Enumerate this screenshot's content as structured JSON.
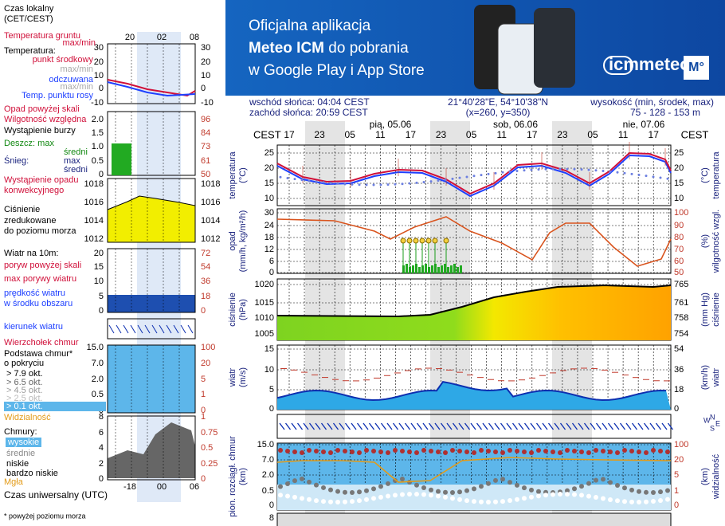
{
  "banner": {
    "line1": "Oficjalna aplikacja",
    "brand": "Meteo ICM",
    "line2_rest": " do pobrania",
    "line3": "w Google Play i App Store",
    "logo": "icmmeteo",
    "badge": "M°"
  },
  "info": {
    "sunrise": "wschód słońca: 04:04 CEST",
    "sunset": "zachód słońca: 20:59 CEST",
    "coords": "21°40'28\"E, 54°10'38\"N",
    "grid_point": "(x=260,  y=350)",
    "elevation_title": "wysokość (min, środek, max)",
    "elevation": "75 - 128 - 153 m"
  },
  "header": {
    "tz": "CEST",
    "days": [
      "pią, 05.06",
      "sob, 06.06",
      "nie, 07.06"
    ],
    "hours": [
      "17",
      "23",
      "05",
      "11",
      "17",
      "23",
      "05",
      "11",
      "17",
      "23",
      "05",
      "11",
      "17"
    ]
  },
  "panels": [
    {
      "left_label": [
        "temperatura",
        "(°C)"
      ],
      "right_label": [
        "(°C)",
        "temperatura"
      ],
      "yticks": [
        "25",
        "20",
        "15",
        "10"
      ],
      "y2ticks": [
        "25",
        "20",
        "15",
        "10"
      ]
    },
    {
      "left_label": [
        "opad",
        "(mm/h, kg/m²/h)"
      ],
      "right_label": [
        "(%)",
        "wilgotność wzgl."
      ],
      "yticks": [
        "30",
        "24",
        "18",
        "12",
        "6",
        "0"
      ],
      "y2ticks": [
        "100",
        "90",
        "80",
        "70",
        "60",
        "50"
      ]
    },
    {
      "left_label": [
        "ciśnienie",
        "(hPa)"
      ],
      "right_label": [
        "(mm Hg)",
        "ciśnienie"
      ],
      "yticks": [
        "1020",
        "1015",
        "1010",
        "1005"
      ],
      "y2ticks": [
        "765",
        "761",
        "758",
        "754"
      ]
    },
    {
      "left_label": [
        "wiatr",
        "(m/s)"
      ],
      "right_label": [
        "(km/h)",
        "wiatr"
      ],
      "yticks": [
        "15",
        "10",
        "5",
        "0"
      ],
      "y2ticks": [
        "54",
        "36",
        "18",
        "0"
      ]
    },
    {
      "left_label": [
        "pion. rozciągł. chmur",
        "(km)"
      ],
      "right_label": [
        "(km)",
        "widzialność"
      ],
      "yticks": [
        "15.0",
        "7.0",
        "2.0",
        "0.5",
        "0"
      ],
      "y2ticks": [
        "100",
        "20",
        "5",
        "1",
        "0"
      ]
    }
  ],
  "bottom_tick": "8",
  "compass": [
    "W",
    "N",
    "E",
    "S"
  ],
  "legend": {
    "local_time": [
      "Czas lokalny",
      "(CET/CEST)"
    ],
    "local_hours": [
      "20",
      "02",
      "08"
    ],
    "temp": [
      "Temperatura gruntu",
      "max/min",
      "Temperatura:",
      "punkt środkowy",
      "max/min",
      "odczuwana",
      "max/min",
      "Temp. punktu rosy"
    ],
    "temp_ticks": [
      "30",
      "20",
      "10",
      "0",
      "-10"
    ],
    "precip": [
      "Opad powyżej skali",
      "Wilgotność względna",
      "Wystąpienie burzy",
      "Deszcz: max",
      "średni",
      "Śnieg:",
      "max",
      "średni",
      "Wystąpienie opadu",
      "konwekcyjnego"
    ],
    "precip_ticks": [
      "2.0",
      "1.5",
      "1.0",
      "0.5",
      "0"
    ],
    "precip_ticks2": [
      "96",
      "84",
      "73",
      "61",
      "50"
    ],
    "pressure": [
      "Ciśnienie",
      "zredukowane",
      "do poziomu morza"
    ],
    "pressure_ticks": [
      "1018",
      "1016",
      "1014",
      "1012"
    ],
    "wind": [
      "Wiatr na 10m:",
      "poryw powyżej skali",
      "max porywy wiatru",
      "prędkość wiatru",
      "w środku obszaru"
    ],
    "wind_ticks": [
      "20",
      "15",
      "10",
      "5",
      "0"
    ],
    "wind_ticks2": [
      "72",
      "54",
      "36",
      "18",
      "0"
    ],
    "direction": "kierunek wiatru",
    "cloud": [
      "Wierzchołek chmur",
      "Podstawa chmur*",
      "o pokryciu",
      "> 7.9 okt.",
      "> 6.5 okt.",
      "> 4.5 okt.",
      "> 2.5 okt.",
      "> 0.1 okt.",
      "Widzialność"
    ],
    "cloud_ticks": [
      "15.0",
      "7.0",
      "2.0",
      "0.5",
      "0"
    ],
    "cloud_ticks2": [
      "100",
      "20",
      "5",
      "1",
      "0"
    ],
    "clouds": [
      "Chmury:",
      "wysokie",
      "średnie",
      "niskie",
      "bardzo niskie",
      "Mgła"
    ],
    "clouds_ticks": [
      "8",
      "6",
      "4",
      "2",
      "0"
    ],
    "clouds_ticks2": [
      "1",
      "0.75",
      "0.5",
      "0.25",
      "0"
    ],
    "utc_hours": [
      "-18",
      "00",
      "06"
    ],
    "utc": "Czas uniwersalny (UTC)",
    "footnote": "* powyżej poziomu morza"
  }
}
